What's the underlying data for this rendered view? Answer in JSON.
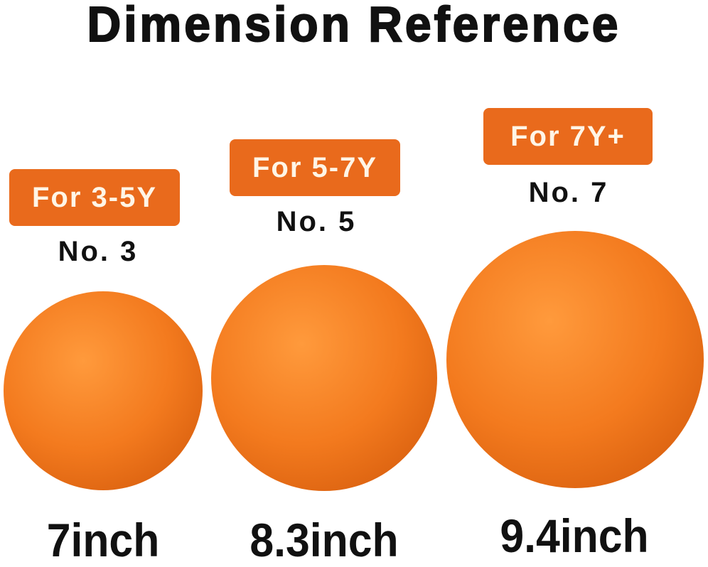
{
  "title": "Dimension Reference",
  "balls": [
    {
      "age": "For 3-5Y",
      "number": "No. 3",
      "size": "7inch"
    },
    {
      "age": "For 5-7Y",
      "number": "No. 5",
      "size": "8.3inch"
    },
    {
      "age": "For 7Y+",
      "number": "No. 7",
      "size": "9.4inch"
    }
  ],
  "colors": {
    "badge": "#e96a1c",
    "ball": "#f37a1e"
  }
}
